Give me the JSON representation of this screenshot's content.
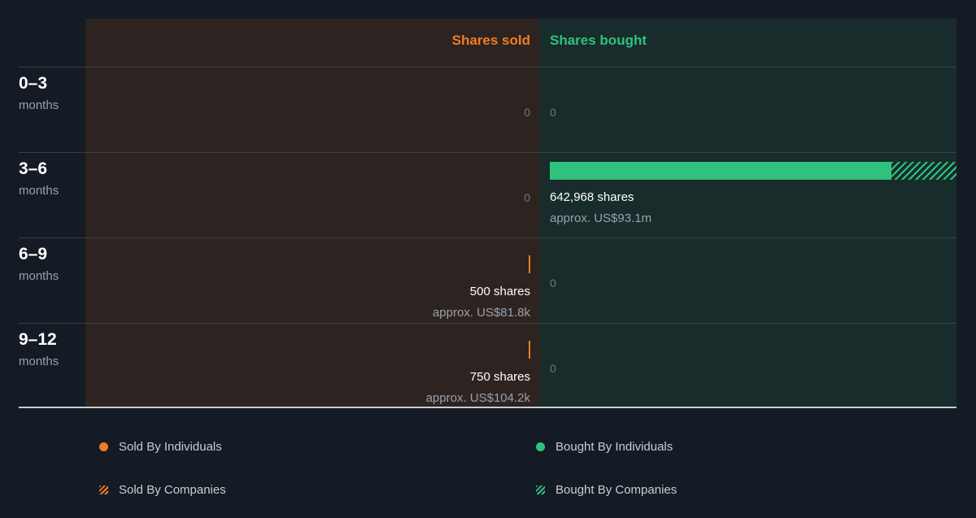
{
  "colors": {
    "sold": "#f07d24",
    "bought": "#2ec27e",
    "sold_panel": "#2d2421",
    "bought_panel": "#182c2b",
    "background": "#151b24"
  },
  "chart_data": {
    "type": "bar",
    "orientation": "horizontal-diverging",
    "columns": {
      "sold": "Shares sold",
      "bought": "Shares bought"
    },
    "rows": [
      {
        "period": "0–3",
        "unit": "months",
        "sold": {
          "individuals": 0,
          "companies": 0,
          "label": "0",
          "approx": ""
        },
        "bought": {
          "individuals": 0,
          "companies": 0,
          "label": "0",
          "approx": ""
        }
      },
      {
        "period": "3–6",
        "unit": "months",
        "sold": {
          "individuals": 0,
          "companies": 0,
          "label": "0",
          "approx": ""
        },
        "bought": {
          "individuals": 540000,
          "companies": 102968,
          "label": "642,968 shares",
          "approx": "approx. US$93.1m"
        }
      },
      {
        "period": "6–9",
        "unit": "months",
        "sold": {
          "individuals": 500,
          "companies": 0,
          "label": "500 shares",
          "approx": "approx. US$81.8k"
        },
        "bought": {
          "individuals": 0,
          "companies": 0,
          "label": "0",
          "approx": ""
        }
      },
      {
        "period": "9–12",
        "unit": "months",
        "sold": {
          "individuals": 750,
          "companies": 0,
          "label": "750 shares",
          "approx": "approx. US$104.2k"
        },
        "bought": {
          "individuals": 0,
          "companies": 0,
          "label": "0",
          "approx": ""
        }
      }
    ],
    "max_value": 642968,
    "legend": [
      {
        "name": "Sold By Individuals",
        "style": "dot",
        "color": "#f07d24"
      },
      {
        "name": "Bought By Individuals",
        "style": "dot",
        "color": "#2ec27e"
      },
      {
        "name": "Sold By Companies",
        "style": "hatch",
        "color": "#f07d24"
      },
      {
        "name": "Bought By Companies",
        "style": "hatch",
        "color": "#2ec27e"
      }
    ],
    "legend_placement": "bottom",
    "grid": false
  }
}
